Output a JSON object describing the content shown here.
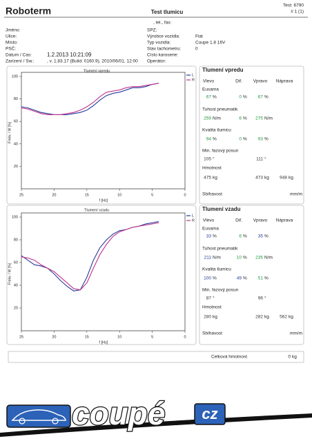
{
  "header": {
    "company": "Roboterm",
    "title": "Test tlumicu",
    "test": "Test: 6790",
    "page": "# 1 (1)",
    "contact": ", tel., fax:"
  },
  "customer": [
    {
      "label": "Jméno:"
    },
    {
      "label": "Ulice:"
    },
    {
      "label": "Místo:"
    },
    {
      "label": "PSČ:"
    },
    {
      "label": "Datum / Cas:",
      "value": "1.2.2013 10:21:09"
    },
    {
      "label": "Zarízení / Sw.:",
      "value": ", v. 1.83.17 (Build: 0160.9), 2010/06/01, 12:00"
    }
  ],
  "vehicle": [
    {
      "label": "SPZ:"
    },
    {
      "label": "Výrobce vozidla:",
      "value": "Fiat"
    },
    {
      "label": "Typ vozidla:",
      "value": "Coupe 1.8 16V"
    },
    {
      "label": "Stav tachometru:",
      "value": "0"
    },
    {
      "label": "Císlo karoserie:"
    },
    {
      "label": "Operátor:"
    }
  ],
  "chart_data": [
    {
      "type": "line",
      "title": "Tlumení vpredu",
      "xlabel": "f [Hz]",
      "ylabel": "Frekv. / W [%]",
      "x": [
        25,
        24,
        23,
        22,
        21,
        20,
        19,
        18,
        17,
        16,
        15,
        14,
        13,
        12,
        11,
        10,
        9,
        8,
        7,
        6,
        5,
        4
      ],
      "xlim": [
        25,
        0
      ],
      "xticks": [
        25,
        20,
        15,
        10,
        5,
        0
      ],
      "ylim": [
        0,
        100
      ],
      "yticks": [
        20,
        40,
        60,
        80,
        100
      ],
      "legend": "upper right",
      "series": [
        {
          "name": "L",
          "color": "#233a9e",
          "values": [
            73,
            72,
            70,
            68,
            67,
            66,
            66,
            66,
            67,
            68,
            70,
            74,
            79,
            83,
            85,
            86,
            88,
            90,
            90,
            91,
            93,
            94
          ]
        },
        {
          "name": "R",
          "color": "#c0308a",
          "values": [
            72,
            71,
            69,
            67,
            66,
            66,
            66,
            67,
            68,
            70,
            73,
            77,
            82,
            86,
            87,
            88,
            90,
            91,
            91,
            92,
            93,
            94
          ]
        }
      ]
    },
    {
      "type": "line",
      "title": "Tlumení vzadu",
      "xlabel": "f [Hz]",
      "ylabel": "Frekv. / W [%]",
      "x": [
        25,
        24,
        23,
        22,
        21,
        20,
        19,
        18,
        17,
        16,
        15,
        14,
        13,
        12,
        11,
        10,
        9,
        8,
        7,
        6,
        5,
        4
      ],
      "xlim": [
        25,
        0
      ],
      "xticks": [
        25,
        20,
        15,
        10,
        5,
        0
      ],
      "ylim": [
        0,
        100
      ],
      "yticks": [
        20,
        40,
        60,
        80,
        100
      ],
      "legend": "upper right",
      "series": [
        {
          "name": "L",
          "color": "#233a9e",
          "values": [
            66,
            62,
            58,
            57,
            55,
            50,
            44,
            39,
            35,
            36,
            47,
            62,
            73,
            80,
            85,
            88,
            89,
            91,
            92,
            94,
            95,
            96
          ]
        },
        {
          "name": "R",
          "color": "#c0308a",
          "values": [
            65,
            64,
            62,
            58,
            55,
            52,
            47,
            42,
            37,
            36,
            42,
            55,
            67,
            76,
            83,
            87,
            89,
            91,
            92,
            93,
            94,
            95
          ]
        }
      ]
    }
  ],
  "results": [
    {
      "title": "Tlumení vpredu",
      "columns": [
        "Vlevo",
        "Dif.",
        "Vpravo",
        "Náprava"
      ],
      "rows": [
        {
          "label": "Eusama",
          "cells": [
            {
              "value": 67,
              "unit": "%",
              "color": "#1a9a3a"
            },
            {
              "value": 0,
              "unit": "%",
              "color": "#1a9a3a"
            },
            {
              "value": 67,
              "unit": "%",
              "color": "#1a9a3a"
            },
            null
          ]
        },
        {
          "label": "Tuhost  pneumatik",
          "cells": [
            {
              "value": 259,
              "unit": "N/m",
              "color": "#1a9a3a"
            },
            {
              "value": 6,
              "unit": "%",
              "color": "#1a9a3a"
            },
            {
              "value": 275,
              "unit": "N/m",
              "color": "#1a9a3a"
            },
            null
          ]
        },
        {
          "label": "Kvalita  tlumicu",
          "cells": [
            {
              "value": 94,
              "unit": "%",
              "color": "#1a9a3a"
            },
            {
              "value": 0,
              "unit": "%",
              "color": "#1a9a3a"
            },
            {
              "value": 93,
              "unit": "%",
              "color": "#1a9a3a"
            },
            null
          ]
        },
        {
          "label": "Min. fazový posun",
          "cells": [
            {
              "value": 105,
              "unit": "°",
              "color": "#333333"
            },
            null,
            {
              "value": 111,
              "unit": "°",
              "color": "#333333"
            },
            null
          ]
        },
        {
          "label": "Hmotnost",
          "cells": [
            {
              "value": 475,
              "unit": "kg",
              "color": "#333333"
            },
            null,
            {
              "value": 473,
              "unit": "kg",
              "color": "#333333"
            },
            {
              "value": 948,
              "unit": "kg",
              "color": "#333333"
            }
          ]
        },
        {
          "label": "Sbíhavost",
          "cells": [
            null,
            null,
            null,
            {
              "unit": "mm/m"
            }
          ]
        }
      ]
    },
    {
      "title": "Tlumení vzadu",
      "columns": [
        "Vlevo",
        "Dif.",
        "Vpravo",
        "Náprava"
      ],
      "rows": [
        {
          "label": "Eusama",
          "cells": [
            {
              "value": 33,
              "unit": "%",
              "color": "#233a9e"
            },
            {
              "value": 6,
              "unit": "%",
              "color": "#1a9a3a"
            },
            {
              "value": 35,
              "unit": "%",
              "color": "#233a9e"
            },
            null
          ]
        },
        {
          "label": "Tuhost  pneumatik",
          "cells": [
            {
              "value": 211,
              "unit": "N/m",
              "color": "#233a9e"
            },
            {
              "value": 10,
              "unit": "%",
              "color": "#1a9a3a"
            },
            {
              "value": 235,
              "unit": "N/m",
              "color": "#1a9a3a"
            },
            null
          ]
        },
        {
          "label": "Kvalita  tlumicu",
          "cells": [
            {
              "value": 100,
              "unit": "%",
              "color": "#233a9e"
            },
            {
              "value": 49,
              "unit": "%",
              "color": "#233a9e"
            },
            {
              "value": 51,
              "unit": "%",
              "color": "#1a9a3a"
            },
            null
          ]
        },
        {
          "label": "Min. fazový posun",
          "cells": [
            {
              "value": 87,
              "unit": "°",
              "color": "#333333"
            },
            null,
            {
              "value": 96,
              "unit": "°",
              "color": "#333333"
            },
            null
          ]
        },
        {
          "label": "Hmotnost",
          "cells": [
            {
              "value": 280,
              "unit": "kg",
              "color": "#333333"
            },
            null,
            {
              "value": 282,
              "unit": "kg",
              "color": "#333333"
            },
            {
              "value": 562,
              "unit": "kg",
              "color": "#333333"
            }
          ]
        },
        {
          "label": "Sbíhavost",
          "cells": [
            null,
            null,
            null,
            {
              "unit": "mm/m"
            }
          ]
        }
      ]
    }
  ],
  "total": {
    "label": "Celková hmotnost",
    "value": 0,
    "unit": "kg"
  },
  "logo": {
    "text": "coupé",
    "suffix": "cz"
  }
}
